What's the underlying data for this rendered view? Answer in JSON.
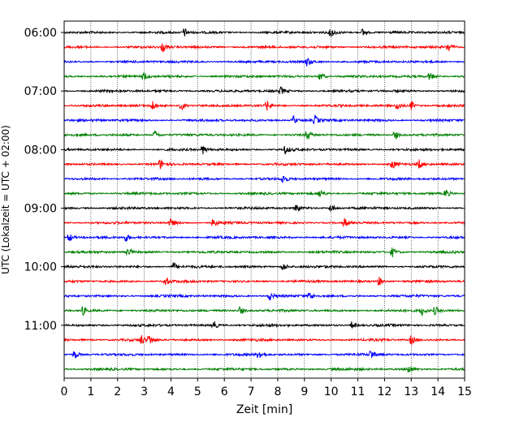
{
  "chart_data": {
    "type": "line",
    "title": "",
    "xlabel": "Zeit  [min]",
    "ylabel": "UTC (Lokalzeit = UTC + 02:00)",
    "xlim": [
      0,
      15
    ],
    "x_ticks": [
      "0",
      "1",
      "2",
      "3",
      "4",
      "5",
      "6",
      "7",
      "8",
      "9",
      "10",
      "11",
      "12",
      "13",
      "14",
      "15"
    ],
    "y_ticks": [
      "06:00",
      "07:00",
      "08:00",
      "09:00",
      "10:00",
      "11:00"
    ],
    "grid": "vertical dotted at each minute",
    "color_cycle": [
      "#000000",
      "#ff0000",
      "#0000ff",
      "#008000"
    ],
    "traces": [
      {
        "label": "06:00",
        "color": "#000000",
        "events": [
          4.5,
          10.0,
          11.2
        ]
      },
      {
        "label": "06:15",
        "color": "#ff0000",
        "events": [
          3.7,
          14.4
        ]
      },
      {
        "label": "06:30",
        "color": "#0000ff",
        "events": [
          9.1
        ]
      },
      {
        "label": "06:45",
        "color": "#008000",
        "events": [
          3.0,
          9.6,
          13.7
        ]
      },
      {
        "label": "07:00",
        "color": "#000000",
        "events": [
          8.1
        ]
      },
      {
        "label": "07:15",
        "color": "#ff0000",
        "events": [
          3.3,
          4.4,
          7.6,
          12.5,
          13.0
        ]
      },
      {
        "label": "07:30",
        "color": "#0000ff",
        "events": [
          8.6,
          9.4
        ]
      },
      {
        "label": "07:45",
        "color": "#008000",
        "events": [
          3.4,
          9.1,
          12.4
        ]
      },
      {
        "label": "08:00",
        "color": "#000000",
        "events": [
          5.2,
          8.3
        ]
      },
      {
        "label": "08:15",
        "color": "#ff0000",
        "events": [
          3.6,
          12.3,
          13.3
        ]
      },
      {
        "label": "08:30",
        "color": "#0000ff",
        "events": [
          8.2
        ]
      },
      {
        "label": "08:45",
        "color": "#008000",
        "events": [
          9.6,
          14.3
        ]
      },
      {
        "label": "09:00",
        "color": "#000000",
        "events": [
          8.7,
          10.0
        ]
      },
      {
        "label": "09:15",
        "color": "#ff0000",
        "events": [
          4.0,
          5.6,
          10.5
        ]
      },
      {
        "label": "09:30",
        "color": "#0000ff",
        "events": [
          0.2,
          2.3
        ]
      },
      {
        "label": "09:45",
        "color": "#008000",
        "events": [
          2.4,
          12.3
        ]
      },
      {
        "label": "10:00",
        "color": "#000000",
        "events": [
          4.1,
          8.2
        ]
      },
      {
        "label": "10:15",
        "color": "#ff0000",
        "events": [
          3.8,
          11.8
        ]
      },
      {
        "label": "10:30",
        "color": "#0000ff",
        "events": [
          7.7,
          9.2
        ]
      },
      {
        "label": "10:45",
        "color": "#008000",
        "events": [
          0.7,
          6.6,
          13.4,
          13.9
        ]
      },
      {
        "label": "11:00",
        "color": "#000000",
        "events": [
          5.6,
          10.8
        ]
      },
      {
        "label": "11:15",
        "color": "#ff0000",
        "events": [
          2.9,
          3.2,
          13.0
        ]
      },
      {
        "label": "11:30",
        "color": "#0000ff",
        "events": [
          0.4,
          7.3,
          11.5
        ]
      },
      {
        "label": "11:45",
        "color": "#008000",
        "events": [
          12.9
        ]
      }
    ]
  }
}
